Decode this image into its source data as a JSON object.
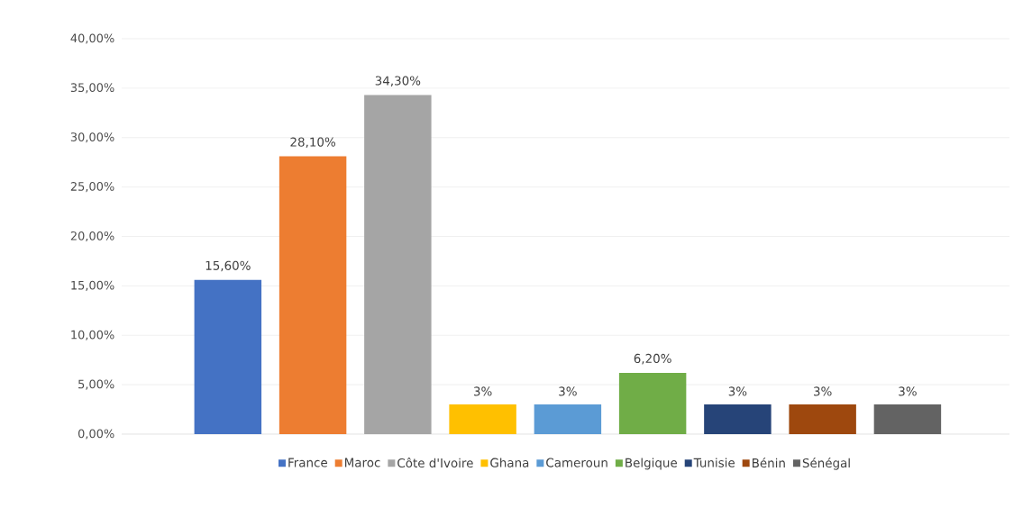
{
  "chart_data": {
    "type": "bar",
    "categories": [
      null
    ],
    "series": [
      {
        "name": "France",
        "color": "#4472c4",
        "values": [
          15.6
        ],
        "value_labels": [
          "15,60%"
        ]
      },
      {
        "name": "Maroc",
        "color": "#ed7d31",
        "values": [
          28.1
        ],
        "value_labels": [
          "28,10%"
        ]
      },
      {
        "name": "Côte d'Ivoire",
        "color": "#a5a5a5",
        "values": [
          34.3
        ],
        "value_labels": [
          "34,30%"
        ]
      },
      {
        "name": "Ghana",
        "color": "#ffc000",
        "values": [
          3
        ],
        "value_labels": [
          "3%"
        ]
      },
      {
        "name": "Cameroun",
        "color": "#5b9bd5",
        "values": [
          3
        ],
        "value_labels": [
          "3%"
        ]
      },
      {
        "name": "Belgique",
        "color": "#70ad47",
        "values": [
          6.2
        ],
        "value_labels": [
          "6,20%"
        ]
      },
      {
        "name": "Tunisie",
        "color": "#264478",
        "values": [
          3
        ],
        "value_labels": [
          "3%"
        ]
      },
      {
        "name": "Bénin",
        "color": "#9e480e",
        "values": [
          3
        ],
        "value_labels": [
          "3%"
        ]
      },
      {
        "name": "Sénégal",
        "color": "#636363",
        "values": [
          3
        ],
        "value_labels": [
          "3%"
        ]
      }
    ],
    "ylim": [
      0,
      40
    ],
    "yticks": [
      {
        "value": 0,
        "label": "0,00%"
      },
      {
        "value": 5,
        "label": "5,00%"
      },
      {
        "value": 10,
        "label": "10,00%"
      },
      {
        "value": 15,
        "label": "15,00%"
      },
      {
        "value": 20,
        "label": "20,00%"
      },
      {
        "value": 25,
        "label": "25,00%"
      },
      {
        "value": 30,
        "label": "30,00%"
      },
      {
        "value": 35,
        "label": "35,00%"
      },
      {
        "value": 40,
        "label": "40,00%"
      }
    ],
    "grid": "y",
    "legend": "bottom"
  }
}
